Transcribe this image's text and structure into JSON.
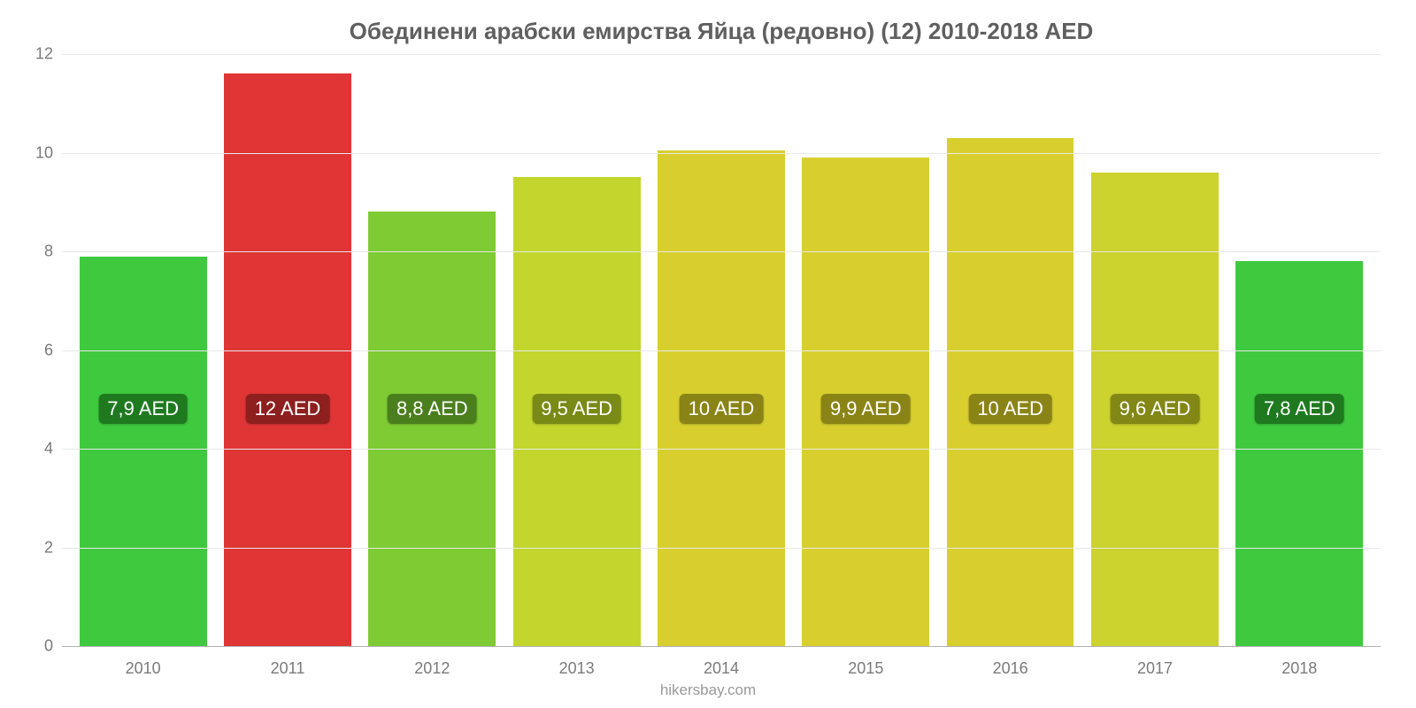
{
  "chart": {
    "type": "bar",
    "title": "Обединени арабски емирства Яйца (редовно) (12) 2010-2018 AED",
    "title_fontsize": 26,
    "title_color": "#5f5f5f",
    "background_color": "#ffffff",
    "grid_color": "#e8e8e8",
    "axis_color": "#b0b0b0",
    "tick_label_color": "#7a7a7a",
    "tick_fontsize": 18,
    "ylim": [
      0,
      12
    ],
    "ytick_step": 2,
    "yticks": [
      0,
      2,
      4,
      6,
      8,
      10,
      12
    ],
    "bar_width": 0.88,
    "data_label_fontsize": 22,
    "footer": "hikersbay.com",
    "footer_color": "#9a9a9a",
    "footer_fontsize": 17,
    "categories": [
      "2010",
      "2011",
      "2012",
      "2013",
      "2014",
      "2015",
      "2016",
      "2017",
      "2018"
    ],
    "values": [
      7.9,
      11.6,
      8.8,
      9.5,
      10.05,
      9.9,
      10.3,
      9.6,
      7.8
    ],
    "data_labels": [
      "7,9 AED",
      "12 AED",
      "8,8 AED",
      "9,5 AED",
      "10 AED",
      "9,9 AED",
      "10 AED",
      "9,6 AED",
      "7,8 AED"
    ],
    "bar_colors": [
      "#3fc93f",
      "#e03535",
      "#7ecb33",
      "#c2d62d",
      "#d8cf2f",
      "#d8cf2f",
      "#d8cf2f",
      "#ccd22e",
      "#3fc93f"
    ],
    "label_bg_colors": [
      "#1f7a1f",
      "#8e1f1f",
      "#4b7f1e",
      "#7a8a16",
      "#8a8416",
      "#8a8416",
      "#8a8416",
      "#828716",
      "#1f7a1f"
    ]
  }
}
